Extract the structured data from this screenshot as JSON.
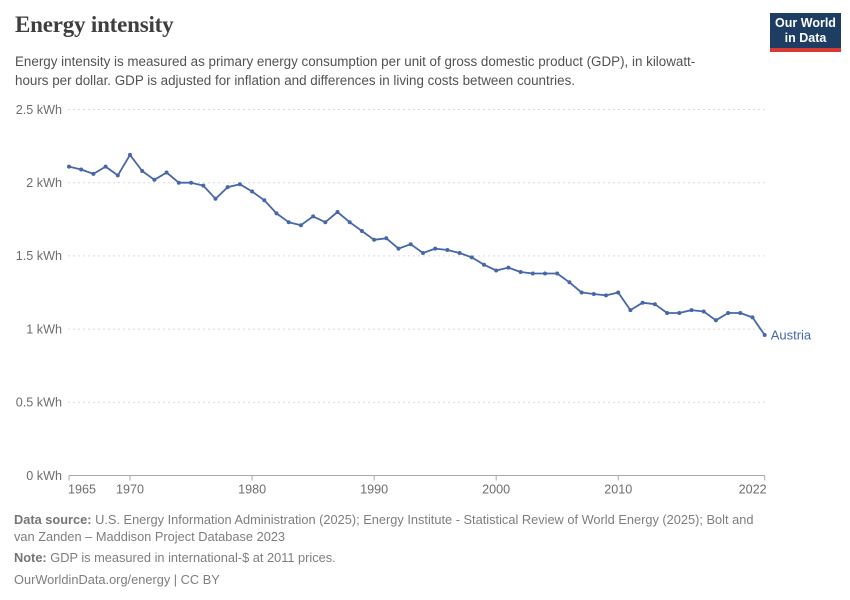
{
  "header": {
    "title": "Energy intensity",
    "subtitle": "Energy intensity is measured as primary energy consumption per unit of gross domestic product (GDP), in kilowatt-hours per dollar. GDP is adjusted for inflation and differences in living costs between countries.",
    "logo_line1": "Our World",
    "logo_line2": "in Data",
    "logo_bg_color": "#1d3d63",
    "logo_accent_color": "#d93a33"
  },
  "chart_data": {
    "type": "line",
    "title": "Energy intensity",
    "unit": "kWh",
    "xlim": [
      1965,
      2022
    ],
    "ylim": [
      0,
      2.5
    ],
    "grid": "horizontal-dashed",
    "grid_color": "#d9d9d9",
    "axis_color": "#a9a9a9",
    "tick_label_color": "#6d6d6d",
    "legend_position": "end-of-line label",
    "x_ticks": [
      1965,
      1970,
      1980,
      1990,
      2000,
      2010,
      2022
    ],
    "y_ticks": [
      {
        "value": 0,
        "label": "0 kWh"
      },
      {
        "value": 0.5,
        "label": "0.5 kWh"
      },
      {
        "value": 1,
        "label": "1 kWh"
      },
      {
        "value": 1.5,
        "label": "1.5 kWh"
      },
      {
        "value": 2,
        "label": "2 kWh"
      },
      {
        "value": 2.5,
        "label": "2.5 kWh"
      }
    ],
    "series": [
      {
        "name": "Austria",
        "color": "#4767a8",
        "years": [
          1965,
          1966,
          1967,
          1968,
          1969,
          1970,
          1971,
          1972,
          1973,
          1974,
          1975,
          1976,
          1977,
          1978,
          1979,
          1980,
          1981,
          1982,
          1983,
          1984,
          1985,
          1986,
          1987,
          1988,
          1989,
          1990,
          1991,
          1992,
          1993,
          1994,
          1995,
          1996,
          1997,
          1998,
          1999,
          2000,
          2001,
          2002,
          2003,
          2004,
          2005,
          2006,
          2007,
          2008,
          2009,
          2010,
          2011,
          2012,
          2013,
          2014,
          2015,
          2016,
          2017,
          2018,
          2019,
          2020,
          2021,
          2022
        ],
        "values": [
          2.11,
          2.09,
          2.06,
          2.11,
          2.05,
          2.19,
          2.08,
          2.02,
          2.07,
          2.0,
          2.0,
          1.98,
          1.89,
          1.97,
          1.99,
          1.94,
          1.88,
          1.79,
          1.73,
          1.71,
          1.77,
          1.73,
          1.8,
          1.73,
          1.67,
          1.61,
          1.62,
          1.55,
          1.58,
          1.52,
          1.55,
          1.54,
          1.52,
          1.49,
          1.44,
          1.4,
          1.42,
          1.39,
          1.38,
          1.38,
          1.38,
          1.32,
          1.25,
          1.24,
          1.23,
          1.25,
          1.13,
          1.18,
          1.17,
          1.11,
          1.11,
          1.13,
          1.12,
          1.06,
          1.11,
          1.11,
          1.08,
          0.96
        ]
      }
    ]
  },
  "footer": {
    "datasource_label": "Data source:",
    "datasource_text": " U.S. Energy Information Administration (2025); Energy Institute - Statistical Review of World Energy (2025); Bolt and van Zanden – Maddison Project Database 2023",
    "note_label": "Note:",
    "note_text": " GDP is measured in international-$ at 2011 prices.",
    "license": "OurWorldinData.org/energy | CC BY"
  }
}
